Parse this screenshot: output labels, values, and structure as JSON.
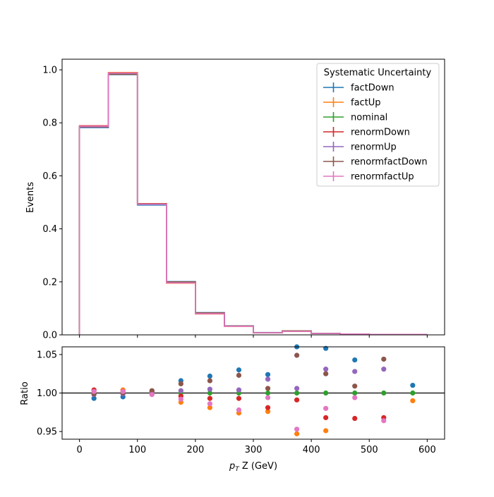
{
  "chart_data": [
    {
      "type": "line",
      "drawstyle": "steps-post",
      "ylabel": "Events",
      "xlim": [
        -30,
        630
      ],
      "ylim": [
        0,
        1.04
      ],
      "yticks": [
        0.0,
        0.2,
        0.4,
        0.6,
        0.8,
        1.0
      ],
      "ytick_labels": [
        "0.0",
        "0.2",
        "0.4",
        "0.6",
        "0.8",
        "1.0"
      ],
      "bin_edges": [
        0,
        50,
        100,
        150,
        200,
        250,
        300,
        350,
        400,
        450,
        500,
        550,
        600
      ],
      "legend": {
        "title": "Systematic Uncertainty",
        "placement": "top-right"
      },
      "series": [
        {
          "name": "factDown",
          "color": "#1f77b4",
          "values": [
            0.782,
            0.982,
            0.49,
            0.201,
            0.084,
            0.034,
            0.009,
            0.015,
            0.006,
            0.003,
            0.002,
            0.002
          ]
        },
        {
          "name": "factUp",
          "color": "#ff7f0e",
          "values": [
            0.787,
            0.99,
            0.495,
            0.195,
            0.079,
            0.032,
            0.008,
            0.013,
            0.005,
            0.003,
            0.002,
            0.002
          ]
        },
        {
          "name": "nominal",
          "color": "#2ca02c",
          "values": [
            0.786,
            0.986,
            0.494,
            0.198,
            0.081,
            0.033,
            0.008,
            0.014,
            0.005,
            0.003,
            0.002,
            0.002
          ]
        },
        {
          "name": "renormDown",
          "color": "#d62728",
          "values": [
            0.789,
            0.988,
            0.495,
            0.197,
            0.08,
            0.033,
            0.008,
            0.014,
            0.005,
            0.003,
            0.002,
            0.002
          ]
        },
        {
          "name": "renormUp",
          "color": "#9467bd",
          "values": [
            0.784,
            0.985,
            0.493,
            0.198,
            0.082,
            0.033,
            0.008,
            0.014,
            0.005,
            0.003,
            0.002,
            0.002
          ]
        },
        {
          "name": "renormfactDown",
          "color": "#8c564b",
          "values": [
            0.785,
            0.983,
            0.494,
            0.2,
            0.083,
            0.033,
            0.008,
            0.015,
            0.005,
            0.003,
            0.002,
            0.002
          ]
        },
        {
          "name": "renormfactUp",
          "color": "#e377c2",
          "values": [
            0.787,
            0.988,
            0.493,
            0.196,
            0.08,
            0.032,
            0.008,
            0.013,
            0.005,
            0.003,
            0.002,
            0.002
          ]
        }
      ]
    },
    {
      "type": "scatter",
      "xlabel": "$p_T$ Z (GeV)",
      "xlabel_main": "p",
      "xlabel_sub": "T",
      "xlabel_rest": " Z (GeV)",
      "ylabel": "Ratio",
      "xlim": [
        -30,
        630
      ],
      "ylim": [
        0.94,
        1.06
      ],
      "xticks": [
        0,
        100,
        200,
        300,
        400,
        500,
        600
      ],
      "xtick_labels": [
        "0",
        "100",
        "200",
        "300",
        "400",
        "500",
        "600"
      ],
      "yticks": [
        0.95,
        1.0,
        1.05
      ],
      "ytick_labels": [
        "0.95",
        "1.00",
        "1.05"
      ],
      "reference_line": 1.0,
      "x": [
        25,
        75,
        125,
        175,
        225,
        275,
        325,
        375,
        425,
        475,
        525,
        575
      ],
      "series": [
        {
          "name": "factDown",
          "color": "#1f77b4",
          "values": [
            0.993,
            0.995,
            0.999,
            1.016,
            1.022,
            1.03,
            1.024,
            1.06,
            1.058,
            1.043,
            null,
            1.01
          ]
        },
        {
          "name": "factUp",
          "color": "#ff7f0e",
          "values": [
            1.001,
            1.004,
            1.0,
            0.988,
            0.981,
            0.974,
            0.976,
            0.947,
            0.951,
            null,
            null,
            0.99
          ]
        },
        {
          "name": "nominal",
          "color": "#2ca02c",
          "values": [
            1.0,
            1.0,
            1.0,
            1.0,
            1.0,
            1.0,
            1.0,
            1.0,
            1.0,
            1.0,
            1.0,
            1.0
          ]
        },
        {
          "name": "renormDown",
          "color": "#d62728",
          "values": [
            1.004,
            1.002,
            1.002,
            0.996,
            0.993,
            0.993,
            0.981,
            0.991,
            0.968,
            0.967,
            0.968,
            null
          ]
        },
        {
          "name": "renormUp",
          "color": "#9467bd",
          "values": [
            0.998,
            0.999,
            1.0,
            1.003,
            1.005,
            1.004,
            1.018,
            1.006,
            1.031,
            1.028,
            1.031,
            null
          ]
        },
        {
          "name": "renormfactDown",
          "color": "#8c564b",
          "values": [
            0.999,
            1.0,
            1.003,
            1.012,
            1.016,
            1.023,
            1.006,
            1.049,
            1.025,
            1.009,
            1.044,
            null
          ]
        },
        {
          "name": "renormfactUp",
          "color": "#e377c2",
          "values": [
            1.002,
            1.002,
            0.998,
            0.992,
            0.986,
            0.978,
            0.994,
            0.953,
            0.98,
            0.994,
            0.964,
            null
          ]
        }
      ]
    }
  ]
}
